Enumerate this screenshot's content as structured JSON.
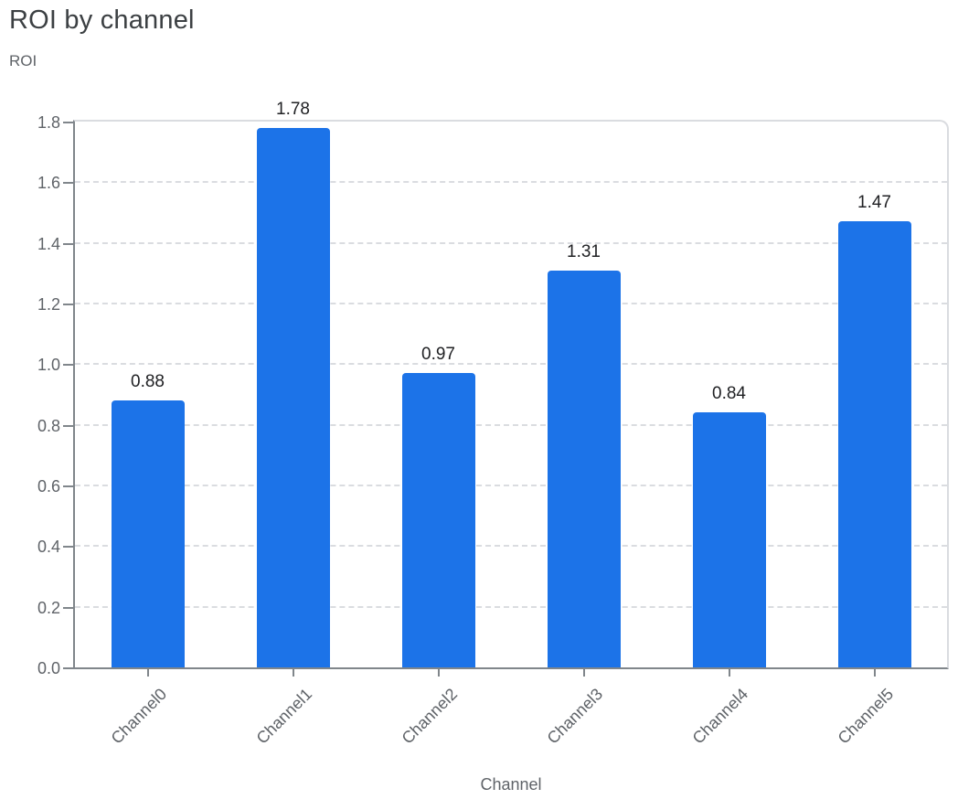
{
  "chart_data": {
    "type": "bar",
    "title": "ROI by channel",
    "xlabel": "Channel",
    "ylabel": "ROI",
    "categories": [
      "Channel0",
      "Channel1",
      "Channel2",
      "Channel3",
      "Channel4",
      "Channel5"
    ],
    "values": [
      0.88,
      1.78,
      0.97,
      1.31,
      0.84,
      1.47
    ],
    "data_labels": [
      "0.88",
      "1.78",
      "0.97",
      "1.31",
      "0.84",
      "1.47"
    ],
    "ylim": [
      0,
      1.8
    ],
    "yticks": [
      "0.0",
      "0.2",
      "0.4",
      "0.6",
      "0.8",
      "1.0",
      "1.2",
      "1.4",
      "1.6",
      "1.8"
    ],
    "grid": "horizontal-dashed",
    "legend": "none",
    "bar_corner_radius": 4,
    "colors": {
      "bar": "#1c73e8",
      "grid": "#dadce0",
      "axis": "#80868b",
      "tick_label": "#5f6368",
      "title": "#3c4043",
      "axis_title": "#5f6368",
      "data_label": "#202124",
      "background": "#ffffff"
    }
  }
}
